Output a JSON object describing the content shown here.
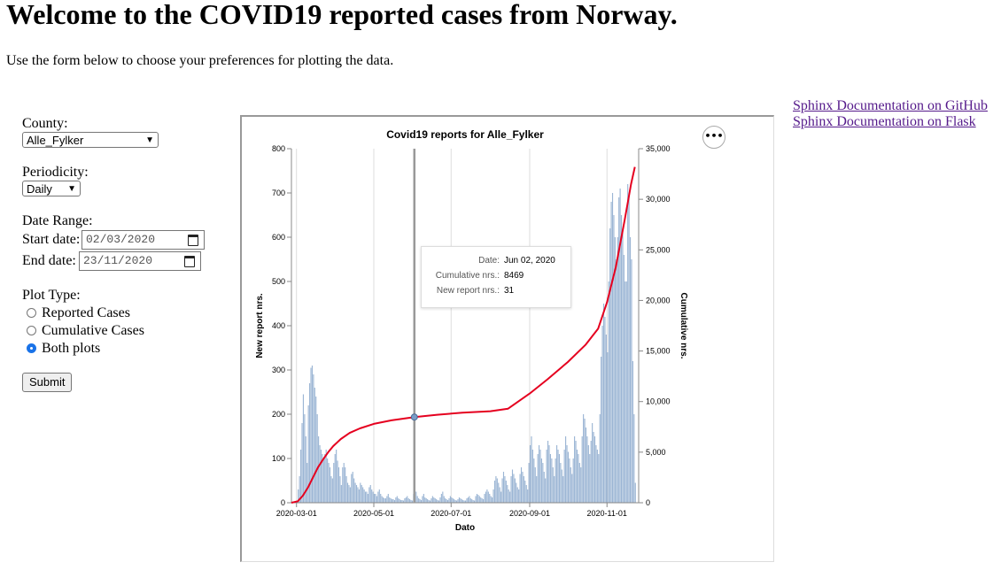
{
  "page": {
    "title": "Welcome to the COVID19 reported cases from Norway.",
    "intro": "Use the form below to choose your preferences for plotting the data."
  },
  "links": [
    {
      "label": "Sphinx Documentation on GitHub"
    },
    {
      "label": "Sphinx Documentation on Flask"
    }
  ],
  "form": {
    "county_label": "County:",
    "county_value": "Alle_Fylker",
    "periodicity_label": "Periodicity:",
    "periodicity_value": "Daily",
    "date_range_label": "Date Range:",
    "start_label": "Start date:",
    "start_value": "02/03/2020",
    "end_label": "End date:",
    "end_value": "23/11/2020",
    "plot_type_label": "Plot Type:",
    "plot_options": [
      {
        "label": "Reported Cases",
        "checked": false
      },
      {
        "label": "Cumulative Cases",
        "checked": false
      },
      {
        "label": "Both plots",
        "checked": true
      }
    ],
    "submit_label": "Submit"
  },
  "icons": {
    "menu": "ellipsis-icon",
    "calendar": "calendar-icon",
    "dropdown": "chevron-down-icon"
  },
  "colors": {
    "bar": "#7a9cc6",
    "line": "#e5001f",
    "radio_checked": "#1a73e8",
    "link": "#551a8b"
  },
  "chart_menu_label": "•••",
  "chart_data": {
    "type": "bar",
    "title": "Covid19 reports for Alle_Fylker",
    "xlabel": "Dato",
    "ylabel": "New report nrs.",
    "ylabel2": "Cumulative nrs.",
    "ylim": [
      0,
      800
    ],
    "ylim2": [
      0,
      35000
    ],
    "y_ticks": [
      "0",
      "100",
      "200",
      "300",
      "400",
      "500",
      "600",
      "700",
      "800"
    ],
    "y2_ticks": [
      "0",
      "5,000",
      "10,000",
      "15,000",
      "20,000",
      "25,000",
      "30,000",
      "35,000"
    ],
    "x_ticks": [
      "2020-03-01",
      "2020-05-01",
      "2020-07-01",
      "2020-09-01",
      "2020-11-01"
    ],
    "x_range": [
      "2020-02-26",
      "2020-11-26"
    ],
    "grid": true,
    "highlight_date": "2020-06-02",
    "tooltip": {
      "date_label": "Date:",
      "date_value": "Jun 02, 2020",
      "cum_label": "Cumulative nrs.:",
      "cum_value": "8469",
      "new_label": "New report nrs.:",
      "new_value": "31"
    },
    "weekly_new_reports": [
      {
        "week_start": "2020-03-02",
        "values": [
          30,
          60,
          120,
          180,
          245,
          200,
          150
        ]
      },
      {
        "week_start": "2020-03-09",
        "values": [
          90,
          220,
          270,
          305,
          310,
          290,
          260
        ]
      },
      {
        "week_start": "2020-03-16",
        "values": [
          240,
          200,
          150,
          130,
          120,
          110,
          100
        ]
      },
      {
        "week_start": "2020-03-23",
        "values": [
          110,
          120,
          100,
          90,
          80,
          60,
          55
        ]
      },
      {
        "week_start": "2020-03-30",
        "values": [
          90,
          110,
          120,
          95,
          80,
          60,
          40
        ]
      },
      {
        "week_start": "2020-04-06",
        "values": [
          80,
          90,
          80,
          60,
          45,
          40,
          35
        ]
      },
      {
        "week_start": "2020-04-13",
        "values": [
          65,
          70,
          55,
          45,
          40,
          35,
          30
        ]
      },
      {
        "week_start": "2020-04-20",
        "values": [
          45,
          40,
          35,
          30,
          25,
          25,
          20
        ]
      },
      {
        "week_start": "2020-04-27",
        "values": [
          35,
          40,
          30,
          25,
          20,
          20,
          15
        ]
      },
      {
        "week_start": "2020-05-04",
        "values": [
          25,
          30,
          20,
          15,
          12,
          10,
          10
        ]
      },
      {
        "week_start": "2020-05-11",
        "values": [
          15,
          20,
          12,
          10,
          8,
          8,
          6
        ]
      },
      {
        "week_start": "2020-05-18",
        "values": [
          12,
          15,
          10,
          8,
          6,
          6,
          5
        ]
      },
      {
        "week_start": "2020-05-25",
        "values": [
          10,
          12,
          15,
          10,
          8,
          6,
          5
        ]
      },
      {
        "week_start": "2020-06-01",
        "values": [
          20,
          31,
          25,
          15,
          10,
          8,
          6
        ]
      },
      {
        "week_start": "2020-06-08",
        "values": [
          15,
          20,
          12,
          10,
          8,
          6,
          5
        ]
      },
      {
        "week_start": "2020-06-15",
        "values": [
          10,
          15,
          12,
          10,
          8,
          6,
          5
        ]
      },
      {
        "week_start": "2020-06-22",
        "values": [
          12,
          20,
          25,
          15,
          10,
          8,
          6
        ]
      },
      {
        "week_start": "2020-06-29",
        "values": [
          10,
          15,
          12,
          10,
          8,
          6,
          5
        ]
      },
      {
        "week_start": "2020-07-06",
        "values": [
          8,
          12,
          10,
          8,
          6,
          5,
          5
        ]
      },
      {
        "week_start": "2020-07-13",
        "values": [
          10,
          12,
          15,
          10,
          8,
          6,
          5
        ]
      },
      {
        "week_start": "2020-07-20",
        "values": [
          15,
          20,
          18,
          15,
          12,
          10,
          8
        ]
      },
      {
        "week_start": "2020-07-27",
        "values": [
          20,
          25,
          30,
          25,
          20,
          15,
          12
        ]
      },
      {
        "week_start": "2020-08-03",
        "values": [
          30,
          50,
          60,
          55,
          45,
          35,
          25
        ]
      },
      {
        "week_start": "2020-08-10",
        "values": [
          55,
          70,
          60,
          50,
          40,
          30,
          25
        ]
      },
      {
        "week_start": "2020-08-17",
        "values": [
          60,
          75,
          65,
          55,
          45,
          35,
          30
        ]
      },
      {
        "week_start": "2020-08-24",
        "values": [
          65,
          80,
          70,
          60,
          50,
          40,
          30
        ]
      },
      {
        "week_start": "2020-08-31",
        "values": [
          90,
          130,
          150,
          120,
          100,
          80,
          60
        ]
      },
      {
        "week_start": "2020-09-07",
        "values": [
          110,
          130,
          120,
          100,
          90,
          70,
          55
        ]
      },
      {
        "week_start": "2020-09-14",
        "values": [
          120,
          140,
          130,
          110,
          100,
          80,
          60
        ]
      },
      {
        "week_start": "2020-09-21",
        "values": [
          100,
          130,
          120,
          110,
          90,
          75,
          60
        ]
      },
      {
        "week_start": "2020-09-28",
        "values": [
          120,
          150,
          130,
          115,
          100,
          80,
          65
        ]
      },
      {
        "week_start": "2020-10-05",
        "values": [
          100,
          150,
          140,
          120,
          110,
          90,
          80
        ]
      },
      {
        "week_start": "2020-10-12",
        "values": [
          150,
          200,
          190,
          170,
          150,
          130,
          110
        ]
      },
      {
        "week_start": "2020-10-19",
        "values": [
          140,
          180,
          160,
          150,
          130,
          120,
          110
        ]
      },
      {
        "week_start": "2020-10-26",
        "values": [
          200,
          330,
          400,
          450,
          420,
          380,
          340
        ]
      },
      {
        "week_start": "2020-11-02",
        "values": [
          500,
          620,
          680,
          700,
          650,
          600,
          550
        ]
      },
      {
        "week_start": "2020-11-09",
        "values": [
          600,
          690,
          710,
          650,
          620,
          560,
          500
        ]
      },
      {
        "week_start": "2020-11-16",
        "values": [
          500,
          720,
          700,
          600,
          550,
          320,
          200
        ]
      },
      {
        "week_start": "2020-11-23",
        "values": [
          45
        ]
      }
    ],
    "cumulative_series": {
      "x": [
        "2020-02-26",
        "2020-03-02",
        "2020-03-06",
        "2020-03-10",
        "2020-03-14",
        "2020-03-18",
        "2020-03-22",
        "2020-03-26",
        "2020-03-30",
        "2020-04-05",
        "2020-04-12",
        "2020-04-20",
        "2020-05-01",
        "2020-05-15",
        "2020-06-02",
        "2020-06-20",
        "2020-07-10",
        "2020-08-01",
        "2020-08-15",
        "2020-09-01",
        "2020-09-15",
        "2020-10-01",
        "2020-10-15",
        "2020-10-25",
        "2020-11-01",
        "2020-11-08",
        "2020-11-15",
        "2020-11-20",
        "2020-11-23"
      ],
      "y": [
        0,
        150,
        700,
        1500,
        2500,
        3500,
        4300,
        5000,
        5600,
        6300,
        6900,
        7350,
        7800,
        8150,
        8469,
        8700,
        8900,
        9050,
        9300,
        10800,
        12200,
        13900,
        15600,
        17200,
        19800,
        23300,
        28000,
        31500,
        33200
      ]
    }
  }
}
